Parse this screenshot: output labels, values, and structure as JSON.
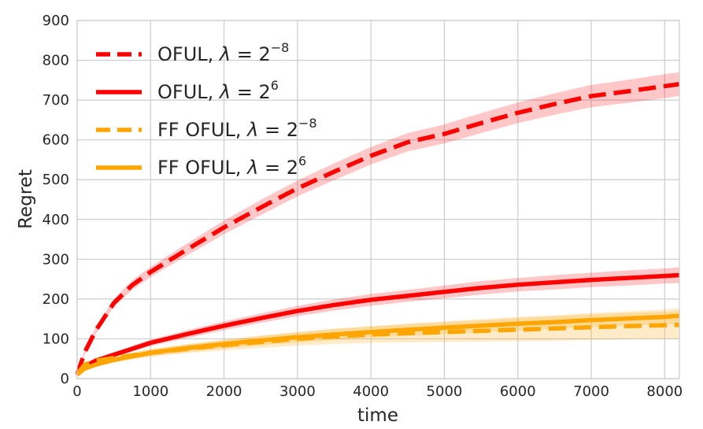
{
  "chart_data": {
    "type": "line",
    "xlabel": "time",
    "ylabel": "Regret",
    "xlim": [
      0,
      8200
    ],
    "ylim": [
      0,
      900
    ],
    "xticks": [
      0,
      1000,
      2000,
      3000,
      4000,
      5000,
      6000,
      7000,
      8000
    ],
    "yticks": [
      0,
      100,
      200,
      300,
      400,
      500,
      600,
      700,
      800,
      900
    ],
    "grid": true,
    "legend_position": "top-left",
    "x": [
      0,
      100,
      250,
      500,
      750,
      1000,
      1500,
      2000,
      2500,
      3000,
      3500,
      4000,
      4500,
      5000,
      5500,
      6000,
      6500,
      7000,
      7500,
      8000,
      8200
    ],
    "series": [
      {
        "name": "OFUL, λ = 2^-8",
        "legend": {
          "prefix": "OFUL, ",
          "lambda": "λ",
          "eq": " = 2",
          "exp": "−8"
        },
        "color": "#ff0000",
        "band_color": "#ff0000",
        "dash": true,
        "values": [
          10,
          65,
          120,
          190,
          235,
          268,
          325,
          380,
          430,
          478,
          520,
          560,
          594,
          615,
          642,
          668,
          690,
          710,
          722,
          735,
          740
        ],
        "band": [
          6,
          6,
          8,
          10,
          12,
          13,
          15,
          17,
          19,
          20,
          21,
          22,
          23,
          24,
          25,
          26,
          27,
          28,
          29,
          30,
          30
        ]
      },
      {
        "name": "OFUL, λ = 2^6",
        "legend": {
          "prefix": "OFUL,  ",
          "lambda": "λ",
          "eq": " = 2",
          "exp": "6"
        },
        "color": "#ff0000",
        "band_color": "#ff0000",
        "dash": false,
        "values": [
          10,
          30,
          45,
          60,
          75,
          90,
          112,
          133,
          152,
          170,
          185,
          198,
          208,
          218,
          228,
          236,
          242,
          248,
          253,
          258,
          260
        ],
        "band": [
          4,
          5,
          5,
          6,
          7,
          8,
          10,
          11,
          12,
          13,
          14,
          15,
          15,
          16,
          17,
          17,
          18,
          18,
          19,
          19,
          20
        ]
      },
      {
        "name": "FF OFUL, λ = 2^-8",
        "legend": {
          "prefix": "FF OFUL, ",
          "lambda": "λ",
          "eq": " = 2",
          "exp": "−8"
        },
        "color": "#ffa500",
        "band_color": "#ffa500",
        "dash": true,
        "values": [
          10,
          35,
          45,
          52,
          58,
          65,
          75,
          84,
          92,
          100,
          106,
          111,
          114,
          117,
          120,
          123,
          126,
          129,
          132,
          134,
          135
        ],
        "band": [
          4,
          5,
          6,
          7,
          8,
          9,
          11,
          13,
          15,
          17,
          19,
          21,
          23,
          25,
          27,
          29,
          31,
          32,
          33,
          34,
          35
        ]
      },
      {
        "name": "FF OFUL, λ = 2^6",
        "legend": {
          "prefix": "FF OFUL,  ",
          "lambda": "λ",
          "eq": " = 2",
          "exp": "6"
        },
        "color": "#ffa500",
        "band_color": "#ffa500",
        "dash": false,
        "values": [
          10,
          25,
          35,
          47,
          56,
          65,
          77,
          87,
          96,
          104,
          111,
          117,
          123,
          128,
          133,
          138,
          142,
          147,
          151,
          155,
          158
        ],
        "band": [
          4,
          5,
          6,
          7,
          8,
          9,
          10,
          11,
          12,
          13,
          14,
          14,
          15,
          16,
          16,
          17,
          17,
          18,
          18,
          19,
          19
        ]
      }
    ]
  }
}
